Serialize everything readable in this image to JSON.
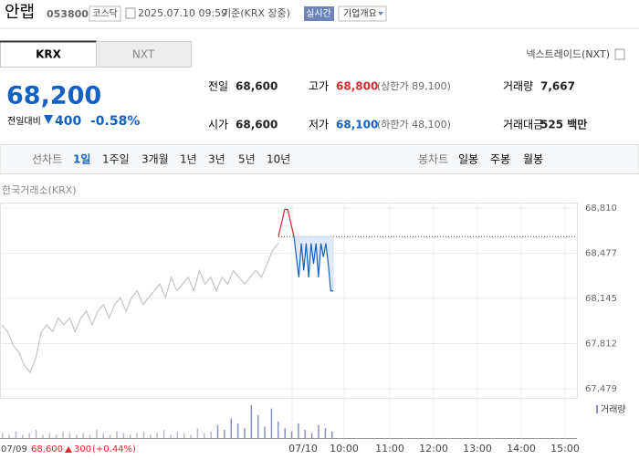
{
  "header": {
    "name": "안랩",
    "code": "053800",
    "market": "코스닥",
    "datetime": "2025.07.10 09:59",
    "basis": "기준(KRX 장중)",
    "realtime": "실시간",
    "company": "기업개요"
  },
  "tabs": [
    "KRX",
    "NXT"
  ],
  "nxt_link": "넥스트레이드(NXT)",
  "quote": {
    "price": "68,200",
    "change_label": "전일대비",
    "change": "400",
    "change_pct": "-0.58%"
  },
  "stats": [
    [
      {
        "label": "전일",
        "value": "68,600"
      },
      {
        "label": "고가",
        "value": "68,800",
        "note": "(상한가 89,100)"
      },
      {
        "label": "거래량",
        "value": "7,667"
      }
    ],
    [
      {
        "label": "시가",
        "value": "68,600"
      },
      {
        "label": "저가",
        "value": "68,100",
        "note": "(하한가 48,100)"
      },
      {
        "label": "거래대금",
        "value": "525 백만"
      }
    ]
  ],
  "periods": {
    "label": "선차트",
    "items": [
      "1일",
      "1주일",
      "3개월",
      "1년",
      "3년",
      "5년",
      "10년"
    ],
    "candle_label": "봉차트",
    "candle_items": [
      "일봉",
      "주봉",
      "월봉"
    ]
  },
  "chart_data": {
    "type": "line",
    "source": "한국거래소(KRX)",
    "ylim": [
      67479,
      68810
    ],
    "yticks": [
      {
        "value": 67479,
        "label": "67,479"
      },
      {
        "value": 67812,
        "label": "67,812"
      },
      {
        "value": 68145,
        "label": "68,145"
      },
      {
        "value": 68477,
        "label": "68,477"
      },
      {
        "value": 68810,
        "label": "68,810"
      }
    ],
    "prev_close": 68600,
    "series": [
      {
        "color": "#c4c4c4",
        "values": [
          67950,
          67900,
          67800,
          67750,
          67650,
          67600,
          67700,
          67900,
          67950,
          67900,
          68000,
          67950,
          68000,
          67900,
          68000,
          68050,
          67950,
          68050,
          68100,
          68000,
          68100,
          68150,
          68050,
          68150,
          68200,
          68100,
          68150,
          68200,
          68250,
          68150,
          68300,
          68200,
          68250,
          68300,
          68200,
          68350,
          68250,
          68300,
          68200,
          68300,
          68250,
          68350,
          68300,
          68250,
          68300,
          68350,
          68300,
          68400,
          68500,
          68550
        ]
      },
      {
        "color": "#e0282e",
        "values": [
          68600,
          68700,
          68800,
          68800,
          68700,
          68600
        ]
      },
      {
        "color": "#1361c5",
        "values": [
          68600,
          68450,
          68300,
          68550,
          68350,
          68550,
          68300,
          68550,
          68400,
          68550,
          68300,
          68550,
          68450,
          68550,
          68400,
          68200,
          68200
        ]
      }
    ],
    "volume_label": "거래량",
    "volumes": [
      3,
      2,
      4,
      2,
      3,
      5,
      2,
      3,
      2,
      4,
      3,
      2,
      3,
      2,
      5,
      3,
      2,
      4,
      3,
      2,
      3,
      4,
      2,
      3,
      5,
      2,
      4,
      3,
      2,
      6,
      3,
      4,
      8,
      5,
      12,
      9,
      6,
      20,
      14,
      7,
      18,
      10,
      6,
      4,
      9,
      5,
      3,
      8,
      6,
      4
    ],
    "prev_day": {
      "date": "07/09",
      "close": "68,600",
      "change": "300",
      "change_pct": "(+0.44%)"
    },
    "time_labels": [
      "07/10",
      "10:00",
      "11:00",
      "12:00",
      "13:00",
      "14:00",
      "15:00"
    ]
  }
}
